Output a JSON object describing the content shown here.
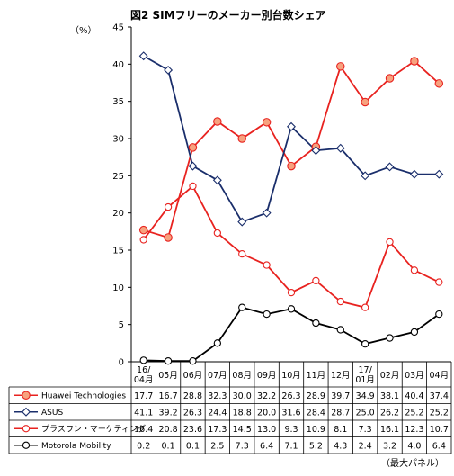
{
  "chart_data": {
    "type": "line",
    "title": "図2 SIMフリーのメーカー別台数シェア",
    "ylabel": "（%）",
    "note": "（最大パネル）",
    "ylim": [
      0,
      45
    ],
    "yticks": [
      "0",
      "5",
      "10",
      "15",
      "20",
      "25",
      "30",
      "35",
      "40",
      "45"
    ],
    "categories": [
      [
        "16/",
        "04月"
      ],
      [
        "05月"
      ],
      [
        "06月"
      ],
      [
        "07月"
      ],
      [
        "08月"
      ],
      [
        "09月"
      ],
      [
        "10月"
      ],
      [
        "11月"
      ],
      [
        "12月"
      ],
      [
        "17/",
        "01月"
      ],
      [
        "02月"
      ],
      [
        "03月"
      ],
      [
        "04月"
      ]
    ],
    "grid": false,
    "legend": "bottom-table",
    "series": [
      {
        "name": "Huawei Technologies",
        "color": "#e8221f",
        "marker": "circle-filled",
        "marker_fill": "#f7a27f",
        "values": [
          17.7,
          16.7,
          28.8,
          32.3,
          30.0,
          32.2,
          26.3,
          28.9,
          39.7,
          34.9,
          38.1,
          40.4,
          37.4
        ],
        "labels": [
          "17.7",
          "16.7",
          "28.8",
          "32.3",
          "30.0",
          "32.2",
          "26.3",
          "28.9",
          "39.7",
          "34.9",
          "38.1",
          "40.4",
          "37.4"
        ]
      },
      {
        "name": "ASUS",
        "color": "#1a2e6b",
        "marker": "diamond",
        "marker_fill": "#ffffff",
        "values": [
          41.1,
          39.2,
          26.3,
          24.4,
          18.8,
          20.0,
          31.6,
          28.4,
          28.7,
          25.0,
          26.2,
          25.2,
          25.2
        ],
        "labels": [
          "41.1",
          "39.2",
          "26.3",
          "24.4",
          "18.8",
          "20.0",
          "31.6",
          "28.4",
          "28.7",
          "25.0",
          "26.2",
          "25.2",
          "25.2"
        ]
      },
      {
        "name": "プラスワン・マーケティング",
        "color": "#e8221f",
        "marker": "circle-open",
        "marker_fill": "#ffffff",
        "values": [
          16.4,
          20.8,
          23.6,
          17.3,
          14.5,
          13.0,
          9.3,
          10.9,
          8.1,
          7.3,
          16.1,
          12.3,
          10.7
        ],
        "labels": [
          "16.4",
          "20.8",
          "23.6",
          "17.3",
          "14.5",
          "13.0",
          "9.3",
          "10.9",
          "8.1",
          "7.3",
          "16.1",
          "12.3",
          "10.7"
        ]
      },
      {
        "name": "Motorola Mobility",
        "color": "#000000",
        "marker": "circle-open",
        "marker_fill": "#ffffff",
        "values": [
          0.2,
          0.1,
          0.1,
          2.5,
          7.3,
          6.4,
          7.1,
          5.2,
          4.3,
          2.4,
          3.2,
          4.0,
          6.4
        ],
        "labels": [
          "0.2",
          "0.1",
          "0.1",
          "2.5",
          "7.3",
          "6.4",
          "7.1",
          "5.2",
          "4.3",
          "2.4",
          "3.2",
          "4.0",
          "6.4"
        ]
      }
    ]
  }
}
